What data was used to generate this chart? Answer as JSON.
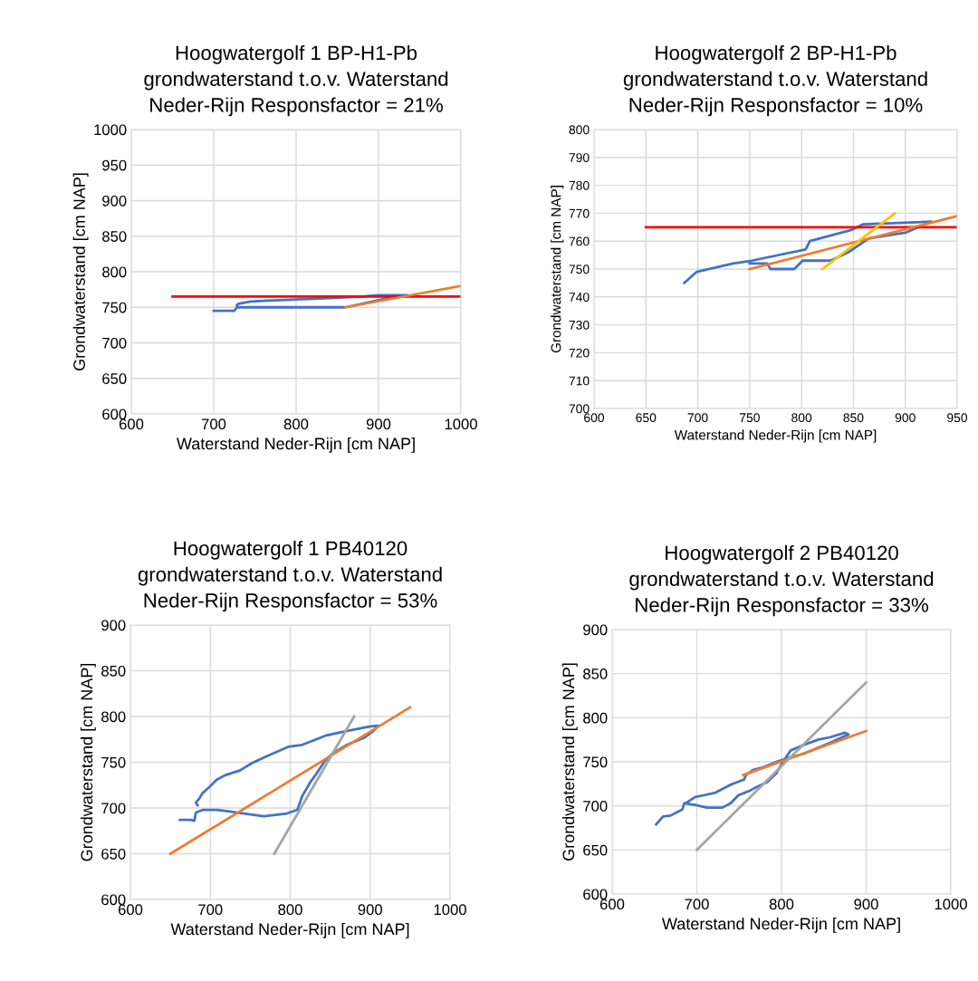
{
  "chart_data": [
    {
      "type": "line",
      "title": "Hoogwatergolf 1 BP-H1-Pb\ngrondwaterstand t.o.v. Waterstand\nNeder-Rijn Responsfactor = 21%",
      "xlabel": "Waterstand Neder-Rijn [cm NAP]",
      "ylabel": "Grondwaterstand [cm NAP]",
      "xlim": [
        600,
        1000
      ],
      "ylim": [
        600,
        1000
      ],
      "xticks": [
        600,
        700,
        800,
        900,
        1000
      ],
      "yticks": [
        600,
        650,
        700,
        750,
        800,
        850,
        900,
        950,
        1000
      ],
      "grid": true,
      "legend": false,
      "marker": "none",
      "line_style": "solid",
      "series": [
        {
          "color": "#4472c4",
          "x": [
            700,
            725,
            728,
            860,
            880,
            900,
            920,
            935,
            900,
            880,
            840,
            800,
            760,
            745,
            730,
            728
          ],
          "values": [
            745,
            745,
            750,
            750,
            755,
            760,
            765,
            767,
            767,
            765,
            763,
            761,
            759,
            758,
            755,
            753
          ]
        },
        {
          "color": "#ff0000",
          "x": [
            650,
            1000
          ],
          "values": [
            765,
            765
          ]
        },
        {
          "color": "#ed7d31",
          "x": [
            860,
            1000
          ],
          "values": [
            750,
            780
          ]
        }
      ]
    },
    {
      "type": "line",
      "title": "Hoogwatergolf 2 BP-H1-Pb\ngrondwaterstand t.o.v. Waterstand\nNeder-Rijn Responsfactor = 10%",
      "xlabel": "Waterstand Neder-Rijn [cm NAP]",
      "ylabel": "Grondwaterstand [cm NAP]",
      "xlim": [
        600,
        950
      ],
      "ylim": [
        700,
        800
      ],
      "xticks": [
        600,
        650,
        700,
        750,
        800,
        850,
        900,
        950
      ],
      "yticks": [
        700,
        710,
        720,
        730,
        740,
        750,
        760,
        770,
        780,
        790,
        800
      ],
      "grid": true,
      "legend": false,
      "marker": "none",
      "line_style": "solid",
      "series": [
        {
          "color": "#4472c4",
          "x": [
            687,
            699,
            734,
            752,
            804,
            808,
            848,
            859,
            925,
            900,
            865,
            845,
            828,
            801,
            793,
            770,
            767,
            750
          ],
          "values": [
            745,
            749,
            752,
            753,
            757,
            760,
            764,
            766,
            767,
            763,
            761,
            756,
            753,
            753,
            750,
            750,
            752,
            752
          ]
        },
        {
          "color": "#ff0000",
          "x": [
            650,
            950
          ],
          "values": [
            765,
            765
          ]
        },
        {
          "color": "#ed7d31",
          "x": [
            750,
            950
          ],
          "values": [
            750,
            769
          ]
        },
        {
          "color": "#ffc000",
          "x": [
            820,
            890
          ],
          "values": [
            750,
            770
          ]
        }
      ]
    },
    {
      "type": "line",
      "title": "Hoogwatergolf 1 PB40120\ngrondwaterstand t.o.v. Waterstand\nNeder-Rijn Responsfactor = 53%",
      "xlabel": "Waterstand Neder-Rijn [cm NAP]",
      "ylabel": "Grondwaterstand [cm NAP]",
      "xlim": [
        600,
        1000
      ],
      "ylim": [
        600,
        900
      ],
      "xticks": [
        600,
        700,
        800,
        900,
        1000
      ],
      "yticks": [
        600,
        650,
        700,
        750,
        800,
        850,
        900
      ],
      "grid": true,
      "legend": false,
      "marker": "none",
      "line_style": "solid",
      "series": [
        {
          "color": "#4472c4",
          "x": [
            662,
            676,
            680,
            682,
            691,
            708,
            734,
            767,
            796,
            809,
            815,
            825,
            834,
            843,
            852,
            871,
            893,
            904,
            910,
            899,
            870,
            844,
            815,
            798,
            769,
            752,
            737,
            719,
            708,
            699,
            690,
            686,
            682,
            684
          ],
          "values": [
            687,
            687,
            686,
            695,
            698,
            698,
            695,
            691,
            694,
            698,
            713,
            728,
            739,
            751,
            759,
            769,
            777,
            784,
            790,
            789,
            784,
            779,
            769,
            767,
            756,
            749,
            741,
            736,
            731,
            723,
            716,
            710,
            706,
            703
          ]
        },
        {
          "color": "#ed7d31",
          "x": [
            650,
            950
          ],
          "values": [
            650,
            810
          ]
        },
        {
          "color": "#a5a5a5",
          "x": [
            780,
            880
          ],
          "values": [
            650,
            800
          ]
        }
      ]
    },
    {
      "type": "line",
      "title": "Hoogwatergolf 2 PB40120\ngrondwaterstand t.o.v. Waterstand\nNeder-Rijn Responsfactor = 33%",
      "xlabel": "Waterstand Neder-Rijn [cm NAP]",
      "ylabel": "Grondwaterstand [cm NAP]",
      "xlim": [
        600,
        1000
      ],
      "ylim": [
        600,
        900
      ],
      "xticks": [
        600,
        700,
        800,
        900,
        1000
      ],
      "yticks": [
        600,
        650,
        700,
        750,
        800,
        850,
        900
      ],
      "grid": true,
      "legend": false,
      "marker": "none",
      "line_style": "solid",
      "series": [
        {
          "color": "#4472c4",
          "x": [
            652,
            660,
            669,
            683,
            685,
            698,
            712,
            730,
            740,
            749,
            762,
            772,
            783,
            794,
            801,
            811,
            826,
            843,
            858,
            875,
            879,
            861,
            843,
            826,
            811,
            797,
            779,
            767,
            758,
            756,
            740,
            722,
            708,
            698,
            687
          ],
          "values": [
            679,
            688,
            689,
            696,
            703,
            701,
            698,
            698,
            703,
            712,
            717,
            722,
            727,
            737,
            749,
            763,
            769,
            775,
            778,
            783,
            781,
            773,
            766,
            759,
            755,
            751,
            744,
            741,
            735,
            730,
            724,
            715,
            712,
            710,
            703
          ]
        },
        {
          "color": "#ed7d31",
          "x": [
            755,
            900
          ],
          "values": [
            735,
            785
          ]
        },
        {
          "color": "#a5a5a5",
          "x": [
            700,
            900
          ],
          "values": [
            650,
            840
          ]
        }
      ]
    }
  ]
}
